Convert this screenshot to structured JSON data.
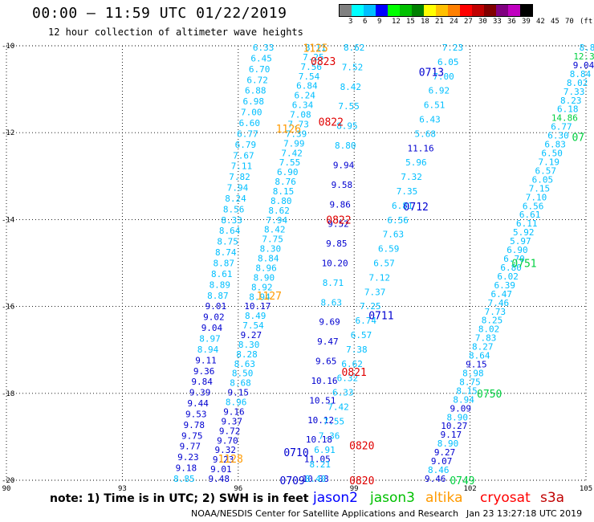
{
  "header": {
    "title": "00:00 – 11:59 UTC 01/22/2019",
    "subtitle": "12 hour collection of altimeter wave heights"
  },
  "legend": {
    "colors": [
      "#808080",
      "#00ffff",
      "#00bfff",
      "#0000ff",
      "#00ff00",
      "#00c000",
      "#008000",
      "#ffff00",
      "#ffc000",
      "#ff8000",
      "#ff0000",
      "#c00000",
      "#800000",
      "#800080",
      "#c000c0",
      "#000000"
    ],
    "labels": [
      "3",
      "6",
      "9",
      "12",
      "15",
      "18",
      "21",
      "24",
      "27",
      "30",
      "33",
      "36",
      "39",
      "42",
      "45",
      "70",
      "(ft)"
    ]
  },
  "map": {
    "lat_labels": [
      "-10",
      "-12",
      "-14",
      "-16",
      "-18",
      "-20"
    ],
    "lon_labels": [
      "90",
      "93",
      "96",
      "99",
      "102",
      "105"
    ]
  },
  "chart_data": {
    "type": "scatter",
    "xlim": [
      90,
      105
    ],
    "ylim": [
      -20,
      -10
    ],
    "grid": true,
    "unit": "ft",
    "colors": {
      "cyan": "#00bfff",
      "blue": "#0000d0",
      "green": "#00d040",
      "red": "#e00000",
      "orange": "#ff9a00",
      "darkgreen": "#008000"
    },
    "series": [
      {
        "name": "altika",
        "color": "orange",
        "tracks": [
          {
            "x0": 96.65,
            "x1": 94.6,
            "values": [
              "6.33",
              "6.45",
              "6.70",
              "6.72",
              "6.88",
              "6.98",
              "7.00",
              "6.60",
              "6.77",
              "6.79",
              "7.67",
              "7.11",
              "7.82",
              "7.94",
              "8.24",
              "8.56",
              "8.33",
              "8.64",
              "8.75",
              "8.74",
              "8.87",
              "8.61",
              "8.89",
              "8.87",
              "9.01",
              "9.02",
              "9.04",
              "8.97",
              "8.94",
              "9.11",
              "9.36",
              "9.84",
              "9.39",
              "9.44",
              "9.53",
              "9.78",
              "9.75",
              "9.77",
              "9.23",
              "9.18",
              "8.85"
            ]
          }
        ],
        "labels": [
          {
            "lon": 98.0,
            "lat": -10.05,
            "text": "1125"
          },
          {
            "lon": 97.3,
            "lat": -11.9,
            "text": "1126"
          },
          {
            "lon": 96.8,
            "lat": -15.75,
            "text": "1127"
          },
          {
            "lon": 95.8,
            "lat": -19.5,
            "text": "1128"
          }
        ]
      },
      {
        "name": "cryosat",
        "color": "red",
        "tracks": [
          {
            "x0": 98.0,
            "x1": 95.5,
            "values": [
              "8.11",
              "7.25",
              "7.56",
              "7.54",
              "6.84",
              "6.24",
              "6.34",
              "7.08",
              "7.73",
              "7.39",
              "7.99",
              "7.42",
              "7.55",
              "6.90",
              "8.76",
              "8.15",
              "8.80",
              "8.62",
              "7.94",
              "8.42",
              "7.75",
              "8.30",
              "8.84",
              "8.96",
              "8.90",
              "8.92",
              "8.94",
              "10.17",
              "8.49",
              "7.54",
              "9.27",
              "8.30",
              "8.28",
              "8.63",
              "8.50",
              "8.68",
              "9.15",
              "8.96",
              "9.16",
              "9.37",
              "9.72",
              "9.70",
              "9.32",
              "9.23",
              "9.01",
              "9.48"
            ]
          },
          {
            "x0": 99.0,
            "x1": 98.0,
            "values": [
              "8.62",
              "7.52",
              "8.42",
              "7.55",
              "8.95",
              "8.80",
              "9.94",
              "9.58",
              "9.86",
              "9.52",
              "9.85",
              "10.20",
              "8.71",
              "8.63",
              "9.69",
              "9.47",
              "9.65",
              "10.16",
              "10.51",
              "10.12",
              "10.18",
              "11.05",
              "10.38"
            ]
          }
        ],
        "labels": [
          {
            "lon": 98.2,
            "lat": -10.35,
            "text": "0823"
          },
          {
            "lon": 98.4,
            "lat": -11.75,
            "text": "0822"
          },
          {
            "lon": 98.6,
            "lat": -14.0,
            "text": "0822"
          },
          {
            "lon": 99.0,
            "lat": -17.5,
            "text": "0821"
          },
          {
            "lon": 99.2,
            "lat": -19.2,
            "text": "0820"
          },
          {
            "lon": 99.2,
            "lat": -20.0,
            "text": "0820"
          }
        ]
      },
      {
        "name": "jason2",
        "color": "blue",
        "tracks": [
          {
            "x0": 101.55,
            "x1": 98.0,
            "values": [
              "7.23",
              "6.05",
              "7.00",
              "6.92",
              "6.51",
              "6.43",
              "5.68",
              "11.16",
              "5.96",
              "7.32",
              "7.35",
              "6.81",
              "6.56",
              "7.63",
              "6.59",
              "6.57",
              "7.12",
              "7.37",
              "7.25",
              "6.74",
              "6.57",
              "7.38",
              "6.62",
              "6.32",
              "6.33",
              "7.42",
              "7.55",
              "7.36",
              "6.91",
              "8.21",
              "8.40"
            ]
          }
        ],
        "labels": [
          {
            "lon": 101.0,
            "lat": -10.6,
            "text": "0713"
          },
          {
            "lon": 100.6,
            "lat": -13.7,
            "text": "0712"
          },
          {
            "lon": 99.7,
            "lat": -16.2,
            "text": "0711"
          },
          {
            "lon": 97.5,
            "lat": -19.35,
            "text": "0710"
          },
          {
            "lon": 97.4,
            "lat": -20.0,
            "text": "0709"
          }
        ]
      },
      {
        "name": "jason3",
        "color": "green",
        "tracks": [
          {
            "x0": 105.1,
            "x1": 101.1,
            "values": [
              "8.80",
              "12.31",
              "9.04",
              "8.84",
              "8.02",
              "7.33",
              "8.23",
              "6.18",
              "14.86",
              "6.77",
              "6.30",
              "6.83",
              "6.50",
              "7.19",
              "6.57",
              "6.05",
              "7.15",
              "7.10",
              "6.56",
              "6.61",
              "6.11",
              "5.92",
              "5.97",
              "6.90",
              "6.70",
              "6.80",
              "6.02",
              "6.39",
              "6.47",
              "7.46",
              "7.73",
              "8.25",
              "8.02",
              "7.83",
              "8.27",
              "8.64",
              "9.15",
              "8.98",
              "8.75",
              "8.15",
              "8.94",
              "9.09",
              "8.90",
              "10.27",
              "9.17",
              "8.90",
              "9.27",
              "9.07",
              "8.46",
              "9.46"
            ]
          }
        ],
        "labels": [
          {
            "lon": 104.8,
            "lat": -12.1,
            "text": "07"
          },
          {
            "lon": 103.4,
            "lat": -15.0,
            "text": "0751"
          },
          {
            "lon": 102.5,
            "lat": -18.0,
            "text": "0750"
          },
          {
            "lon": 101.8,
            "lat": -20.0,
            "text": "0749"
          }
        ]
      }
    ]
  },
  "footer": {
    "note": "note:  1) Time is in UTC;  2) SWH is in feet",
    "satellites": [
      {
        "name": "jason2",
        "color": "#0000ff"
      },
      {
        "name": "jason3",
        "color": "#00c000"
      },
      {
        "name": "altika",
        "color": "#ff9a00"
      },
      {
        "name": "cryosat",
        "color": "#ff0000"
      },
      {
        "name": "s3a",
        "color": "#c00000"
      }
    ],
    "credit": "NOAA/NESDIS Center for Satellite Applications and Research",
    "stamp": "Jan 23 13:27:18 UTC 2019"
  }
}
